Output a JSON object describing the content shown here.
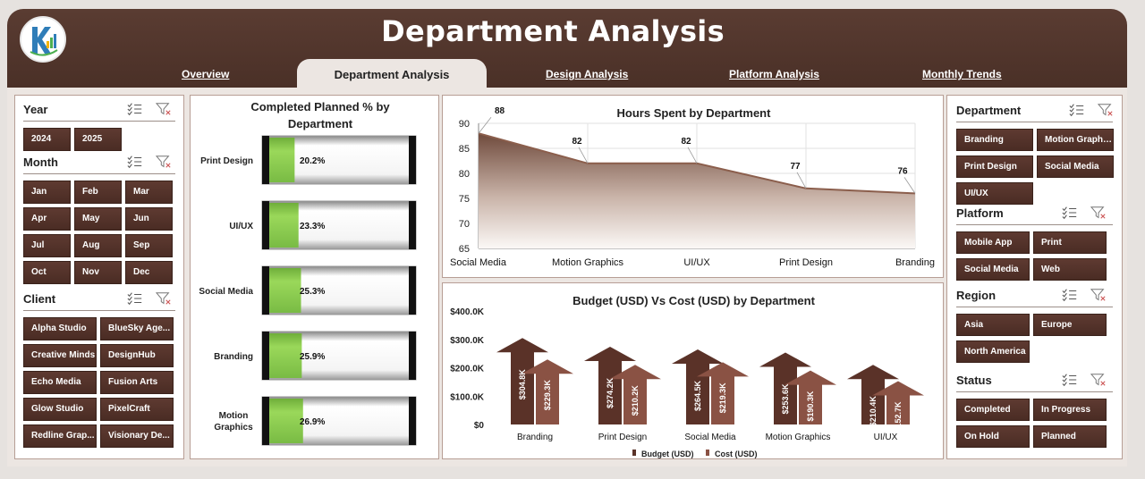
{
  "header": {
    "title": "Department Analysis",
    "tabs": [
      {
        "label": "Overview",
        "active": false
      },
      {
        "label": "Department Analysis",
        "active": true
      },
      {
        "label": "Design Analysis",
        "active": false
      },
      {
        "label": "Platform Analysis",
        "active": false
      },
      {
        "label": "Monthly Trends",
        "active": false
      }
    ]
  },
  "left_slicers": {
    "year": {
      "title": "Year",
      "items": [
        "2024",
        "2025"
      ]
    },
    "month": {
      "title": "Month",
      "items": [
        "Jan",
        "Feb",
        "Mar",
        "Apr",
        "May",
        "Jun",
        "Jul",
        "Aug",
        "Sep",
        "Oct",
        "Nov",
        "Dec"
      ]
    },
    "client": {
      "title": "Client",
      "items": [
        "Alpha Studio",
        "BlueSky Age...",
        "Creative Minds",
        "DesignHub",
        "Echo Media",
        "Fusion Arts",
        "Glow Studio",
        "PixelCraft",
        "Redline Grap...",
        "Visionary De..."
      ]
    }
  },
  "right_slicers": {
    "department": {
      "title": "Department",
      "items": [
        "Branding",
        "Motion Graphi...",
        "Print Design",
        "Social Media",
        "UI/UX"
      ]
    },
    "platform": {
      "title": "Platform",
      "items": [
        "Mobile App",
        "Print",
        "Social Media",
        "Web"
      ]
    },
    "region": {
      "title": "Region",
      "items": [
        "Asia",
        "Europe",
        "North America"
      ]
    },
    "status": {
      "title": "Status",
      "items": [
        "Completed",
        "In Progress",
        "On Hold",
        "Planned"
      ]
    }
  },
  "chart_data": [
    {
      "type": "bar",
      "title": "Completed Planned % by Department",
      "categories": [
        "Print Design",
        "UI/UX",
        "Social Media",
        "Branding",
        "Motion Graphics"
      ],
      "values": [
        20.2,
        23.3,
        25.3,
        25.9,
        26.9
      ],
      "value_labels": [
        "20.2%",
        "23.3%",
        "25.3%",
        "25.9%",
        "26.9%"
      ],
      "orientation": "horizontal",
      "color": "#92d050"
    },
    {
      "type": "area",
      "title": "Hours Spent by Department",
      "categories": [
        "Social Media",
        "Motion Graphics",
        "UI/UX",
        "Print Design",
        "Branding"
      ],
      "values": [
        88,
        82,
        82,
        77,
        76
      ],
      "ylim": [
        65,
        90
      ],
      "yticks": [
        "65",
        "70",
        "75",
        "80",
        "85",
        "90"
      ],
      "grid": true,
      "color": "#8b5e4c"
    },
    {
      "type": "bar",
      "title": "Budget (USD) Vs Cost (USD) by Department",
      "categories": [
        "Branding",
        "Print Design",
        "Social Media",
        "Motion Graphics",
        "UI/UX"
      ],
      "series": [
        {
          "name": "Budget (USD)",
          "values": [
            304.8,
            274.2,
            264.5,
            253.6,
            210.4
          ],
          "labels": [
            "$304.8K",
            "$274.2K",
            "$264.5K",
            "$253.6K",
            "$210.4K"
          ],
          "color": "#5a3228"
        },
        {
          "name": "Cost (USD)",
          "values": [
            229.3,
            210.2,
            219.3,
            190.3,
            152.7
          ],
          "labels": [
            "$229.3K",
            "$210.2K",
            "$219.3K",
            "$190.3K",
            "$152.7K"
          ],
          "color": "#8a5244"
        }
      ],
      "ylim": [
        0,
        400
      ],
      "yticks": [
        "$0",
        "$100.0K",
        "$200.0K",
        "$300.0K",
        "$400.0K"
      ],
      "legend": "bottom"
    }
  ]
}
